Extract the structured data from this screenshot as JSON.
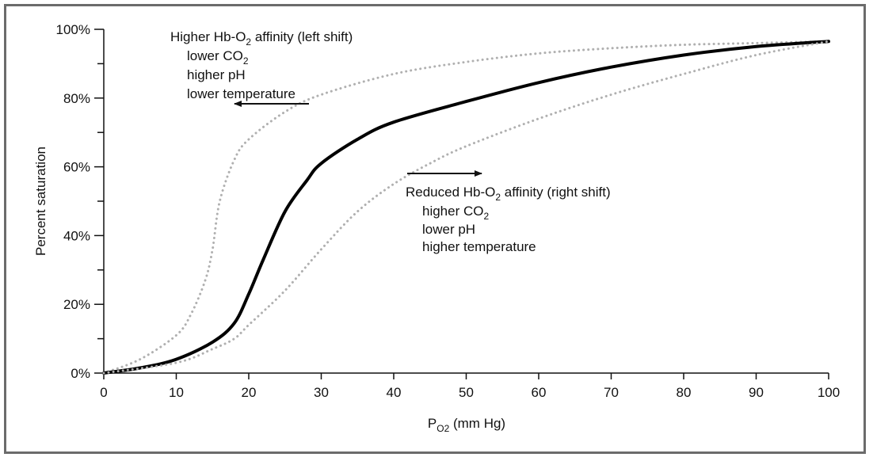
{
  "chart_data": {
    "type": "line",
    "title": "",
    "xlabel": {
      "main": "P",
      "subscript": "O2",
      "suffix": " (mm Hg)"
    },
    "ylabel": "Percent saturation",
    "xlim": [
      0,
      100
    ],
    "ylim": [
      0,
      100
    ],
    "x_ticks": [
      0,
      10,
      20,
      30,
      40,
      50,
      60,
      70,
      80,
      90,
      100
    ],
    "y_ticks": [
      0,
      20,
      40,
      60,
      80,
      100
    ],
    "y_tick_labels": [
      "0%",
      "20%",
      "40%",
      "60%",
      "80%",
      "100%"
    ],
    "grid": false,
    "series": [
      {
        "id": "left-shift",
        "style": "dotted-gray",
        "x": [
          0,
          5,
          10,
          12,
          14,
          15,
          16,
          18,
          20,
          25,
          30,
          40,
          50,
          60,
          70,
          80,
          90,
          100
        ],
        "y": [
          0,
          4,
          11,
          17,
          27,
          36,
          50,
          62,
          68,
          76,
          81,
          87,
          90.5,
          93,
          94.5,
          95.5,
          96,
          96.5
        ]
      },
      {
        "id": "normal",
        "style": "solid-black",
        "x": [
          0,
          5,
          10,
          15,
          18,
          20,
          22,
          25,
          28,
          30,
          35,
          40,
          50,
          60,
          70,
          80,
          90,
          100
        ],
        "y": [
          0,
          1.5,
          4,
          9,
          14.5,
          23,
          33,
          47,
          56,
          61,
          68,
          73,
          79,
          84.5,
          89,
          92.5,
          95,
          96.5
        ]
      },
      {
        "id": "right-shift",
        "style": "dotted-gray",
        "x": [
          0,
          10,
          15,
          18,
          20,
          25,
          30,
          35,
          40,
          45,
          50,
          60,
          70,
          80,
          90,
          100
        ],
        "y": [
          0,
          3,
          7,
          10,
          14,
          24,
          36,
          47,
          55,
          61,
          66,
          74,
          81,
          87,
          92.5,
          96.5
        ]
      }
    ],
    "annotations": {
      "left": {
        "line1": {
          "prefix": "Higher Hb-O",
          "sub": "2",
          "suffix": " affinity (left shift)"
        },
        "line2": {
          "prefix": "lower CO",
          "sub": "2"
        },
        "line3": "higher pH",
        "line4": "lower temperature"
      },
      "right": {
        "line1": {
          "prefix": "Reduced Hb-O",
          "sub": "2",
          "suffix": " affinity (right shift)"
        },
        "line2": {
          "prefix": "higher CO",
          "sub": "2"
        },
        "line3": "lower pH",
        "line4": "higher temperature"
      }
    }
  }
}
